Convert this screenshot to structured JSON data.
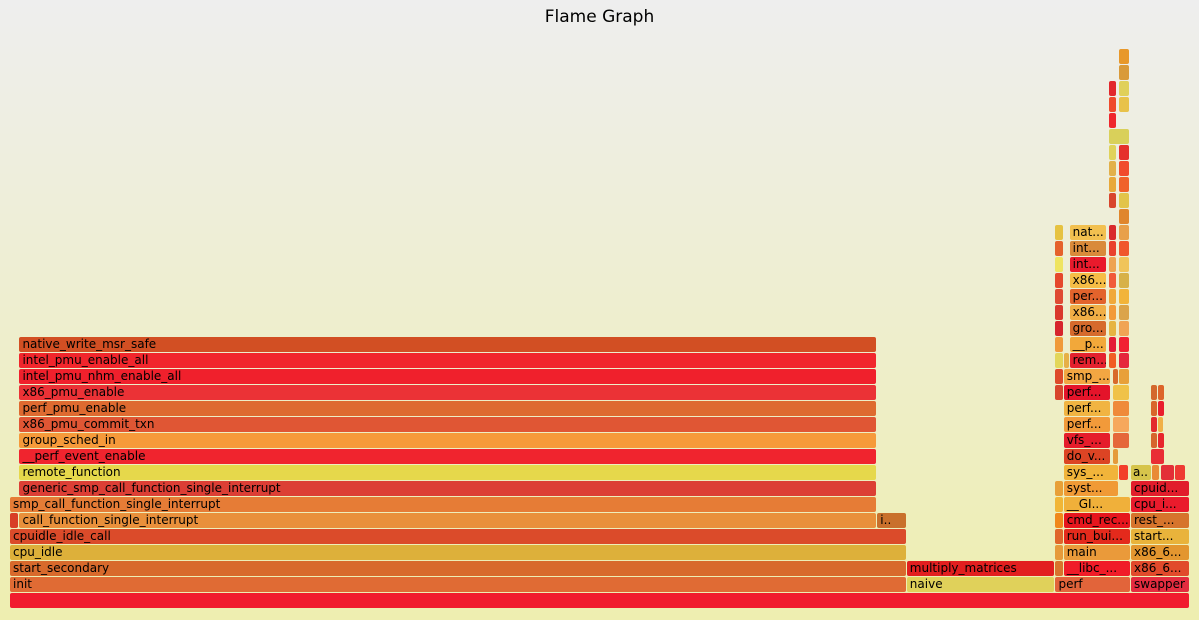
{
  "title": "Flame Graph",
  "chart_data": {
    "type": "flame",
    "title": "Flame Graph",
    "total_width": 1000,
    "frames": [
      {
        "name": "",
        "depth": 0,
        "start": 0,
        "width": 1000,
        "color": "#f11c2e"
      },
      {
        "name": "init",
        "depth": 1,
        "start": 0,
        "width": 760,
        "color": "#e06b34"
      },
      {
        "name": "naive",
        "depth": 1,
        "start": 760,
        "width": 126,
        "color": "#e0d15a"
      },
      {
        "name": "perf",
        "depth": 1,
        "start": 886,
        "width": 64,
        "color": "#e2643a"
      },
      {
        "name": "swapper",
        "depth": 1,
        "start": 950,
        "width": 50,
        "color": "#e42c3f"
      },
      {
        "name": "start_secondary",
        "depth": 2,
        "start": 0,
        "width": 760,
        "color": "#d86a2c"
      },
      {
        "name": "multiply_matrices",
        "depth": 2,
        "start": 760,
        "width": 126,
        "color": "#e21f1f"
      },
      {
        "name": "",
        "depth": 2,
        "start": 886,
        "width": 7,
        "color": "#d8742c"
      },
      {
        "name": "__libc_...",
        "depth": 2,
        "start": 893,
        "width": 57,
        "color": "#f01c28"
      },
      {
        "name": "x86_6...",
        "depth": 2,
        "start": 950,
        "width": 50,
        "color": "#e14a2b"
      },
      {
        "name": "cpu_idle",
        "depth": 3,
        "start": 0,
        "width": 760,
        "color": "#ddb03a"
      },
      {
        "name": "",
        "depth": 3,
        "start": 886,
        "width": 7,
        "color": "#e69a3a"
      },
      {
        "name": "main",
        "depth": 3,
        "start": 893,
        "width": 57,
        "color": "#ea9a3a"
      },
      {
        "name": "x86_6...",
        "depth": 3,
        "start": 950,
        "width": 50,
        "color": "#e3962f"
      },
      {
        "name": "cpuidle_idle_call",
        "depth": 4,
        "start": 0,
        "width": 760,
        "color": "#db4b2a"
      },
      {
        "name": "",
        "depth": 4,
        "start": 886,
        "width": 7,
        "color": "#e0662a"
      },
      {
        "name": "run_bui...",
        "depth": 4,
        "start": 893,
        "width": 57,
        "color": "#e42a1c"
      },
      {
        "name": "start...",
        "depth": 4,
        "start": 950,
        "width": 50,
        "color": "#e9b33b"
      },
      {
        "name": "",
        "depth": 5,
        "start": 0,
        "width": 8,
        "color": "#d83e26"
      },
      {
        "name": "call_function_single_interrupt",
        "depth": 5,
        "start": 8,
        "width": 727,
        "color": "#e9903b"
      },
      {
        "name": "i..",
        "depth": 5,
        "start": 735,
        "width": 25,
        "color": "#c9702c"
      },
      {
        "name": "",
        "depth": 5,
        "start": 886,
        "width": 7,
        "color": "#f0881a"
      },
      {
        "name": "cmd_rec...",
        "depth": 5,
        "start": 893,
        "width": 57,
        "color": "#e6161d"
      },
      {
        "name": "rest_...",
        "depth": 5,
        "start": 950,
        "width": 50,
        "color": "#d6742c"
      },
      {
        "name": "smp_call_function_single_interrupt",
        "depth": 6,
        "start": 0,
        "width": 735,
        "color": "#e67c36"
      },
      {
        "name": "",
        "depth": 6,
        "start": 886,
        "width": 7,
        "color": "#f1b636"
      },
      {
        "name": "__GI...",
        "depth": 6,
        "start": 893,
        "width": 57,
        "color": "#f0b03a"
      },
      {
        "name": "cpu_i...",
        "depth": 6,
        "start": 950,
        "width": 50,
        "color": "#ea1b2c"
      },
      {
        "name": "generic_smp_call_function_single_interrupt",
        "depth": 7,
        "start": 8,
        "width": 727,
        "color": "#dc3f35"
      },
      {
        "name": "",
        "depth": 7,
        "start": 886,
        "width": 7,
        "color": "#e8a037"
      },
      {
        "name": "syst...",
        "depth": 7,
        "start": 893,
        "width": 47,
        "color": "#f09a36"
      },
      {
        "name": "cpuid...",
        "depth": 7,
        "start": 950,
        "width": 50,
        "color": "#e11d2b"
      },
      {
        "name": "remote_function",
        "depth": 8,
        "start": 8,
        "width": 727,
        "color": "#e6d84b"
      },
      {
        "name": "sys_...",
        "depth": 8,
        "start": 893,
        "width": 47,
        "color": "#f1b43a"
      },
      {
        "name": "",
        "depth": 8,
        "start": 940,
        "width": 8,
        "color": "#f33e2a"
      },
      {
        "name": "a..",
        "depth": 8,
        "start": 950,
        "width": 18,
        "color": "#d6c44b"
      },
      {
        "name": "",
        "depth": 8,
        "start": 968,
        "width": 7,
        "color": "#e98a35"
      },
      {
        "name": "",
        "depth": 8,
        "start": 975,
        "width": 12,
        "color": "#e32f37"
      },
      {
        "name": "",
        "depth": 8,
        "start": 987,
        "width": 10,
        "color": "#ee3a33"
      },
      {
        "name": "__perf_event_enable",
        "depth": 9,
        "start": 8,
        "width": 727,
        "color": "#f0242e"
      },
      {
        "name": "do_v...",
        "depth": 9,
        "start": 893,
        "width": 40,
        "color": "#dc4424"
      },
      {
        "name": "",
        "depth": 9,
        "start": 935,
        "width": 5,
        "color": "#e59a3a"
      },
      {
        "name": "",
        "depth": 9,
        "start": 967,
        "width": 12,
        "color": "#e92d35"
      },
      {
        "name": "group_sched_in",
        "depth": 10,
        "start": 8,
        "width": 727,
        "color": "#f69a3a"
      },
      {
        "name": "vfs_...",
        "depth": 10,
        "start": 893,
        "width": 40,
        "color": "#e51d2b"
      },
      {
        "name": "",
        "depth": 10,
        "start": 935,
        "width": 14,
        "color": "#e5673a"
      },
      {
        "name": "",
        "depth": 10,
        "start": 967,
        "width": 6,
        "color": "#d6652c"
      },
      {
        "name": "",
        "depth": 10,
        "start": 973,
        "width": 6,
        "color": "#e7252c"
      },
      {
        "name": "x86_pmu_commit_txn",
        "depth": 11,
        "start": 8,
        "width": 727,
        "color": "#e05634"
      },
      {
        "name": "perf...",
        "depth": 11,
        "start": 893,
        "width": 40,
        "color": "#f29a3a"
      },
      {
        "name": "",
        "depth": 11,
        "start": 935,
        "width": 14,
        "color": "#f6a85c"
      },
      {
        "name": "",
        "depth": 11,
        "start": 967,
        "width": 6,
        "color": "#e3292c"
      },
      {
        "name": "",
        "depth": 11,
        "start": 973,
        "width": 5,
        "color": "#f0b046"
      },
      {
        "name": "perf_pmu_enable",
        "depth": 12,
        "start": 8,
        "width": 727,
        "color": "#de6a30"
      },
      {
        "name": "perf...",
        "depth": 12,
        "start": 893,
        "width": 40,
        "color": "#f1b442"
      },
      {
        "name": "",
        "depth": 12,
        "start": 935,
        "width": 14,
        "color": "#ef8a3a"
      },
      {
        "name": "",
        "depth": 12,
        "start": 967,
        "width": 6,
        "color": "#d9662a"
      },
      {
        "name": "",
        "depth": 12,
        "start": 973,
        "width": 6,
        "color": "#e91e2c"
      },
      {
        "name": "x86_pmu_enable",
        "depth": 13,
        "start": 8,
        "width": 727,
        "color": "#eb3236"
      },
      {
        "name": "",
        "depth": 13,
        "start": 886,
        "width": 7,
        "color": "#d8452c"
      },
      {
        "name": "perf...",
        "depth": 13,
        "start": 893,
        "width": 40,
        "color": "#e4142a"
      },
      {
        "name": "",
        "depth": 13,
        "start": 935,
        "width": 14,
        "color": "#f0c248"
      },
      {
        "name": "",
        "depth": 13,
        "start": 967,
        "width": 6,
        "color": "#d3682c"
      },
      {
        "name": "",
        "depth": 13,
        "start": 973,
        "width": 6,
        "color": "#dd642a"
      },
      {
        "name": "intel_pmu_nhm_enable_all",
        "depth": 14,
        "start": 8,
        "width": 727,
        "color": "#f0202c"
      },
      {
        "name": "",
        "depth": 14,
        "start": 886,
        "width": 7,
        "color": "#de4a2a"
      },
      {
        "name": "smp_...",
        "depth": 14,
        "start": 893,
        "width": 40,
        "color": "#f2a642"
      },
      {
        "name": "",
        "depth": 14,
        "start": 935,
        "width": 5,
        "color": "#d86a2c"
      },
      {
        "name": "",
        "depth": 14,
        "start": 940,
        "width": 9,
        "color": "#e8a03a"
      },
      {
        "name": "intel_pmu_enable_all",
        "depth": 15,
        "start": 8,
        "width": 727,
        "color": "#f1262c"
      },
      {
        "name": "",
        "depth": 15,
        "start": 886,
        "width": 7,
        "color": "#e3d65a"
      },
      {
        "name": "",
        "depth": 15,
        "start": 893,
        "width": 5,
        "color": "#e6b046"
      },
      {
        "name": "rem...",
        "depth": 15,
        "start": 898,
        "width": 32,
        "color": "#e4212e"
      },
      {
        "name": "",
        "depth": 15,
        "start": 931,
        "width": 7,
        "color": "#f15d24"
      },
      {
        "name": "",
        "depth": 15,
        "start": 940,
        "width": 9,
        "color": "#e5263c"
      },
      {
        "name": "native_write_msr_safe",
        "depth": 16,
        "start": 8,
        "width": 727,
        "color": "#d24f23"
      },
      {
        "name": "",
        "depth": 16,
        "start": 886,
        "width": 7,
        "color": "#f09a3a"
      },
      {
        "name": "__p...",
        "depth": 16,
        "start": 898,
        "width": 32,
        "color": "#f2a83a"
      },
      {
        "name": "",
        "depth": 16,
        "start": 931,
        "width": 7,
        "color": "#e41d35"
      },
      {
        "name": "",
        "depth": 16,
        "start": 940,
        "width": 9,
        "color": "#f12031"
      },
      {
        "name": "",
        "depth": 17,
        "start": 886,
        "width": 7,
        "color": "#d6252c"
      },
      {
        "name": "gro...",
        "depth": 17,
        "start": 898,
        "width": 32,
        "color": "#d66a2c"
      },
      {
        "name": "",
        "depth": 17,
        "start": 931,
        "width": 7,
        "color": "#e6b442"
      },
      {
        "name": "",
        "depth": 17,
        "start": 940,
        "width": 9,
        "color": "#f0a454"
      },
      {
        "name": "",
        "depth": 18,
        "start": 886,
        "width": 7,
        "color": "#d9382c"
      },
      {
        "name": "x86...",
        "depth": 18,
        "start": 898,
        "width": 32,
        "color": "#f0ae46"
      },
      {
        "name": "",
        "depth": 18,
        "start": 931,
        "width": 7,
        "color": "#f29a3a"
      },
      {
        "name": "",
        "depth": 18,
        "start": 940,
        "width": 9,
        "color": "#dba44a"
      },
      {
        "name": "",
        "depth": 19,
        "start": 886,
        "width": 7,
        "color": "#df4a32"
      },
      {
        "name": "per...",
        "depth": 19,
        "start": 898,
        "width": 32,
        "color": "#e2632c"
      },
      {
        "name": "",
        "depth": 19,
        "start": 931,
        "width": 7,
        "color": "#f0a83a"
      },
      {
        "name": "",
        "depth": 19,
        "start": 940,
        "width": 9,
        "color": "#f2b43a"
      },
      {
        "name": "",
        "depth": 20,
        "start": 886,
        "width": 7,
        "color": "#e5482c"
      },
      {
        "name": "x86...",
        "depth": 20,
        "start": 898,
        "width": 32,
        "color": "#f6bd46"
      },
      {
        "name": "",
        "depth": 20,
        "start": 931,
        "width": 7,
        "color": "#f15a3a"
      },
      {
        "name": "",
        "depth": 20,
        "start": 940,
        "width": 9,
        "color": "#d7b148"
      },
      {
        "name": "",
        "depth": 21,
        "start": 886,
        "width": 7,
        "color": "#efe460"
      },
      {
        "name": "int...",
        "depth": 21,
        "start": 898,
        "width": 32,
        "color": "#e91a2c"
      },
      {
        "name": "",
        "depth": 21,
        "start": 931,
        "width": 7,
        "color": "#eea352"
      },
      {
        "name": "",
        "depth": 21,
        "start": 940,
        "width": 9,
        "color": "#f0c45a"
      },
      {
        "name": "",
        "depth": 22,
        "start": 886,
        "width": 7,
        "color": "#e5622c"
      },
      {
        "name": "int...",
        "depth": 22,
        "start": 898,
        "width": 32,
        "color": "#d98a3a"
      },
      {
        "name": "",
        "depth": 22,
        "start": 931,
        "width": 7,
        "color": "#e9402c"
      },
      {
        "name": "",
        "depth": 22,
        "start": 940,
        "width": 9,
        "color": "#f0562c"
      },
      {
        "name": "",
        "depth": 23,
        "start": 886,
        "width": 7,
        "color": "#e6c240"
      },
      {
        "name": "nat...",
        "depth": 23,
        "start": 898,
        "width": 32,
        "color": "#f2c050"
      },
      {
        "name": "",
        "depth": 23,
        "start": 931,
        "width": 7,
        "color": "#d92a2c"
      },
      {
        "name": "",
        "depth": 23,
        "start": 940,
        "width": 9,
        "color": "#e8a04a"
      },
      {
        "name": "",
        "depth": 24,
        "start": 940,
        "width": 9,
        "color": "#e0862c"
      },
      {
        "name": "",
        "depth": 25,
        "start": 940,
        "width": 9,
        "color": "#e2c44a"
      },
      {
        "name": "",
        "depth": 25,
        "start": 931,
        "width": 7,
        "color": "#d8452c"
      },
      {
        "name": "",
        "depth": 26,
        "start": 931,
        "width": 7,
        "color": "#e8a83a"
      },
      {
        "name": "",
        "depth": 26,
        "start": 940,
        "width": 9,
        "color": "#f0622a"
      },
      {
        "name": "",
        "depth": 27,
        "start": 931,
        "width": 7,
        "color": "#e2b04a"
      },
      {
        "name": "",
        "depth": 27,
        "start": 940,
        "width": 9,
        "color": "#f14a2c"
      },
      {
        "name": "",
        "depth": 28,
        "start": 931,
        "width": 7,
        "color": "#e0d25a"
      },
      {
        "name": "",
        "depth": 28,
        "start": 940,
        "width": 9,
        "color": "#e5302c"
      },
      {
        "name": "",
        "depth": 29,
        "start": 931,
        "width": 18,
        "color": "#d9d05a"
      },
      {
        "name": "",
        "depth": 30,
        "start": 931,
        "width": 7,
        "color": "#ef262c"
      },
      {
        "name": "",
        "depth": 31,
        "start": 931,
        "width": 7,
        "color": "#ef4a2c"
      },
      {
        "name": "",
        "depth": 31,
        "start": 940,
        "width": 9,
        "color": "#e8c24a"
      },
      {
        "name": "",
        "depth": 32,
        "start": 931,
        "width": 7,
        "color": "#e2272c"
      },
      {
        "name": "",
        "depth": 32,
        "start": 940,
        "width": 9,
        "color": "#e0d05a"
      },
      {
        "name": "",
        "depth": 33,
        "start": 940,
        "width": 9,
        "color": "#d99a3a"
      },
      {
        "name": "",
        "depth": 34,
        "start": 940,
        "width": 9,
        "color": "#e8982a"
      }
    ]
  }
}
